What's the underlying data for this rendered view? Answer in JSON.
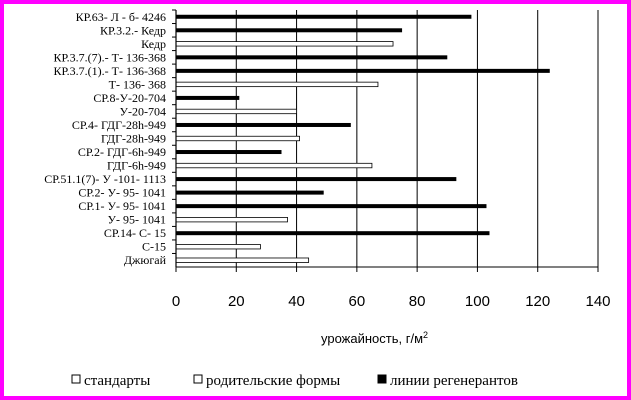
{
  "chart_data": {
    "type": "bar",
    "orientation": "horizontal",
    "xlabel": "урожайность, г/м",
    "xlabel_sup": "2",
    "xlim": [
      0,
      140
    ],
    "xticks": [
      0,
      20,
      40,
      60,
      80,
      100,
      120,
      140
    ],
    "grid": "vertical",
    "legend_position": "bottom",
    "legend": [
      {
        "name": "стандарты",
        "fill": "#ffffff"
      },
      {
        "name": "родительские формы",
        "fill": "#ffffff"
      },
      {
        "name": "линии регенерантов",
        "fill": "#000000"
      }
    ],
    "bars": [
      {
        "label": "КР.63- Л - б- 4246",
        "value": 98,
        "group": "линии регенерантов"
      },
      {
        "label": "КР.3.2.- Кедр",
        "value": 75,
        "group": "линии регенерантов"
      },
      {
        "label": "Кедр",
        "value": 72,
        "group": "родительские формы"
      },
      {
        "label": "КР.3.7.(7).- Т- 136-368",
        "value": 90,
        "group": "линии регенерантов"
      },
      {
        "label": "КР.3.7.(1).- Т- 136-368",
        "value": 124,
        "group": "линии регенерантов"
      },
      {
        "label": "Т- 136- 368",
        "value": 67,
        "group": "родительские формы"
      },
      {
        "label": "СР.8-У-20-704",
        "value": 21,
        "group": "линии регенерантов"
      },
      {
        "label": "У-20-704",
        "value": 40,
        "group": "родительские формы"
      },
      {
        "label": "СР.4- ГДГ-28h-949",
        "value": 58,
        "group": "линии регенерантов"
      },
      {
        "label": "ГДГ-28h-949",
        "value": 41,
        "group": "родительские формы"
      },
      {
        "label": "СР.2- ГДГ-6h-949",
        "value": 35,
        "group": "линии регенерантов"
      },
      {
        "label": "ГДГ-6h-949",
        "value": 65,
        "group": "родительские формы"
      },
      {
        "label": "СР.51.1(7)- У -101- 1113",
        "value": 93,
        "group": "линии регенерантов"
      },
      {
        "label": "СР.2- У- 95- 1041",
        "value": 49,
        "group": "линии регенерантов"
      },
      {
        "label": "СР.1- У- 95- 1041",
        "value": 103,
        "group": "линии регенерантов"
      },
      {
        "label": "У- 95- 1041",
        "value": 37,
        "group": "родительские формы"
      },
      {
        "label": "СР.14- С- 15",
        "value": 104,
        "group": "линии регенерантов"
      },
      {
        "label": "С-15",
        "value": 28,
        "group": "родительские формы"
      },
      {
        "label": "Джюгай",
        "value": 44,
        "group": "стандарты"
      }
    ]
  }
}
